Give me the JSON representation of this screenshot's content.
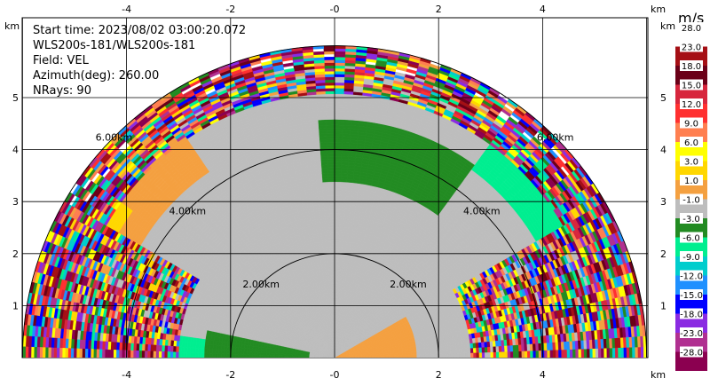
{
  "chart_data": {
    "type": "heatmap",
    "subtype": "lidar-ppi-sector",
    "info": {
      "start_time": "Start time: 2023/08/02 03:00:20.072",
      "instrument": "WLS200s-181/WLS200s-181",
      "field": "Field: VEL",
      "azimuth": "Azimuth(deg): 260.00",
      "nrays": "NRays: 90"
    },
    "x_unit": "km",
    "y_unit": "km",
    "xlim": [
      -6.2,
      6.2
    ],
    "ylim": [
      0,
      6
    ],
    "x_ticks": [
      "-4",
      "-2",
      "-0",
      "2",
      "4"
    ],
    "x_tick_values": [
      -4,
      -2,
      0,
      2,
      4
    ],
    "y_ticks": [
      "1",
      "2",
      "3",
      "4",
      "5"
    ],
    "y_tick_values": [
      1,
      2,
      3,
      4,
      5
    ],
    "range_rings": [
      {
        "r": 2,
        "label": "2.00km"
      },
      {
        "r": 4,
        "label": "4.00km"
      },
      {
        "r": 6,
        "label": "6.00km"
      }
    ],
    "max_range_km": 6,
    "colorbar": {
      "unit": "m/s",
      "labels": [
        "28.0",
        "23.0",
        "18.0",
        "15.0",
        "12.0",
        "9.0",
        "6.0",
        "3.0",
        "1.0",
        "-1.0",
        "-3.0",
        "-6.0",
        "-9.0",
        "-12.0",
        "-15.0",
        "-18.0",
        "-23.0",
        "-28.0"
      ],
      "colors": [
        "#ffffff",
        "#a50f15",
        "#6b0018",
        "#d7263d",
        "#ff3030",
        "#ff7f50",
        "#ffff00",
        "#ffd700",
        "#f4a040",
        "#bdbdbd",
        "#228b22",
        "#00ee90",
        "#00cdcd",
        "#1e90ff",
        "#0000ff",
        "#8a2be2",
        "#b03090",
        "#8b0050"
      ]
    },
    "regions": [
      {
        "name": "near-gray",
        "color_index": 9,
        "r": [
          0,
          5.6
        ],
        "theta": [
          0,
          180
        ]
      },
      {
        "name": "green-north-east",
        "color_index": 10,
        "r": [
          3.4,
          4.6
        ],
        "theta": [
          55,
          95
        ]
      },
      {
        "name": "cyan-east",
        "color_index": 11,
        "r": [
          4.5,
          5.6
        ],
        "theta": [
          30,
          55
        ]
      },
      {
        "name": "orange-west",
        "color_index": 8,
        "r": [
          4.3,
          5.5
        ],
        "theta": [
          125,
          155
        ]
      },
      {
        "name": "yellow-west",
        "color_index": 7,
        "r": [
          4.8,
          5.6
        ],
        "theta": [
          145,
          160
        ]
      },
      {
        "name": "green-south-west",
        "color_index": 10,
        "r": [
          0.5,
          2.5
        ],
        "theta": [
          168,
          180
        ]
      },
      {
        "name": "cyan-south-west",
        "color_index": 11,
        "r": [
          2.5,
          4.2
        ],
        "theta": [
          172,
          180
        ]
      },
      {
        "name": "orange-south",
        "color_index": 8,
        "r": [
          0,
          1.6
        ],
        "theta": [
          0,
          30
        ]
      },
      {
        "name": "noisy-outer",
        "color_index": -1,
        "r": [
          5.1,
          6.0
        ],
        "theta": [
          0,
          180
        ]
      },
      {
        "name": "noisy-east",
        "color_index": -1,
        "r": [
          2.6,
          6.0
        ],
        "theta": [
          0,
          30
        ]
      },
      {
        "name": "noisy-west",
        "color_index": -1,
        "r": [
          3.0,
          6.0
        ],
        "theta": [
          150,
          180
        ]
      }
    ]
  }
}
